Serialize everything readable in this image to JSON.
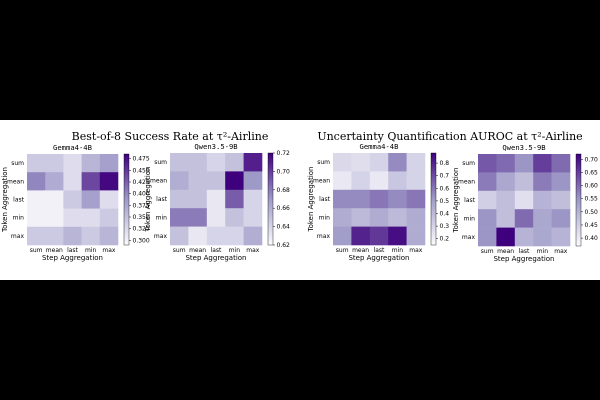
{
  "figure": {
    "left_title": "Best-of-8 Success Rate at τ²-Airline",
    "right_title": "Uncertainty Quantification AUROC at τ²-Airline"
  },
  "colors": {
    "cmap_low": "#fcfbfd",
    "cmap_mid": "#9e9ac8",
    "cmap_high": "#3f007d",
    "background": "#000000",
    "panel": "#ffffff"
  },
  "chart_data": [
    {
      "type": "heatmap",
      "group": "Best-of-8 Success Rate at τ²-Airline",
      "title": "Gemma4-4B",
      "xlabel": "Step Aggregation",
      "ylabel": "Token Aggregation",
      "x": [
        "sum",
        "mean",
        "last",
        "min",
        "max"
      ],
      "y": [
        "sum",
        "mean",
        "last",
        "min",
        "max"
      ],
      "values": [
        [
          0.34,
          0.34,
          0.32,
          0.36,
          0.38
        ],
        [
          0.4,
          0.37,
          0.32,
          0.44,
          0.48
        ],
        [
          0.3,
          0.3,
          0.34,
          0.38,
          0.32
        ],
        [
          0.3,
          0.3,
          0.32,
          0.32,
          0.34
        ],
        [
          0.34,
          0.34,
          0.36,
          0.34,
          0.36
        ]
      ],
      "colorbar": {
        "ticks": [
          0.3,
          0.325,
          0.35,
          0.375,
          0.4,
          0.425,
          0.45,
          0.475
        ],
        "tick_labels": [
          "0.300",
          "0.325",
          "0.350",
          "0.375",
          "0.400",
          "0.425",
          "0.450",
          "0.475"
        ],
        "range": [
          0.29,
          0.485
        ]
      }
    },
    {
      "type": "heatmap",
      "group": "Best-of-8 Success Rate at τ²-Airline",
      "title": "Qwen3.5-9B",
      "xlabel": "Step Aggregation",
      "ylabel": "Token Aggregation",
      "x": [
        "sum",
        "mean",
        "last",
        "min",
        "max"
      ],
      "y": [
        "sum",
        "mean",
        "last",
        "min",
        "max"
      ],
      "values": [
        [
          0.65,
          0.65,
          0.64,
          0.65,
          0.71
        ],
        [
          0.66,
          0.65,
          0.65,
          0.72,
          0.67
        ],
        [
          0.65,
          0.65,
          0.63,
          0.69,
          0.64
        ],
        [
          0.68,
          0.68,
          0.63,
          0.65,
          0.64
        ],
        [
          0.65,
          0.63,
          0.64,
          0.64,
          0.66
        ]
      ],
      "colorbar": {
        "ticks": [
          0.62,
          0.64,
          0.66,
          0.68,
          0.7,
          0.72
        ],
        "tick_labels": [
          "0.62",
          "0.64",
          "0.66",
          "0.68",
          "0.70",
          "0.72"
        ],
        "range": [
          0.62,
          0.72
        ]
      }
    },
    {
      "type": "heatmap",
      "group": "Uncertainty Quantification AUROC at τ²-Airline",
      "title": "Gemma4-4B",
      "xlabel": "Step Aggregation",
      "ylabel": "Token Aggregation",
      "x": [
        "sum",
        "mean",
        "last",
        "min",
        "max"
      ],
      "y": [
        "sum",
        "mean",
        "last",
        "min",
        "max"
      ],
      "values": [
        [
          0.28,
          0.26,
          0.3,
          0.55,
          0.3
        ],
        [
          0.22,
          0.3,
          0.22,
          0.35,
          0.3
        ],
        [
          0.55,
          0.55,
          0.6,
          0.55,
          0.6
        ],
        [
          0.45,
          0.4,
          0.45,
          0.4,
          0.45
        ],
        [
          0.5,
          0.8,
          0.75,
          0.85,
          0.45
        ]
      ],
      "colorbar": {
        "ticks": [
          0.2,
          0.3,
          0.4,
          0.5,
          0.6,
          0.7,
          0.8
        ],
        "tick_labels": [
          "0.2",
          "0.3",
          "0.4",
          "0.5",
          "0.6",
          "0.7",
          "0.8"
        ],
        "range": [
          0.15,
          0.88
        ]
      }
    },
    {
      "type": "heatmap",
      "group": "Uncertainty Quantification AUROC at τ²-Airline",
      "title": "Qwen3.5-9B",
      "xlabel": "Step Aggregation",
      "ylabel": "Token Aggregation",
      "x": [
        "sum",
        "mean",
        "last",
        "min",
        "max"
      ],
      "y": [
        "sum",
        "mean",
        "last",
        "min",
        "max"
      ],
      "values": [
        [
          0.62,
          0.6,
          0.55,
          0.65,
          0.6
        ],
        [
          0.58,
          0.52,
          0.48,
          0.58,
          0.55
        ],
        [
          0.45,
          0.48,
          0.42,
          0.5,
          0.48
        ],
        [
          0.55,
          0.48,
          0.6,
          0.52,
          0.55
        ],
        [
          0.55,
          0.72,
          0.5,
          0.52,
          0.5
        ]
      ],
      "colorbar": {
        "ticks": [
          0.4,
          0.45,
          0.5,
          0.55,
          0.6,
          0.65,
          0.7
        ],
        "tick_labels": [
          "0.40",
          "0.45",
          "0.50",
          "0.55",
          "0.60",
          "0.65",
          "0.70"
        ],
        "range": [
          0.37,
          0.72
        ]
      }
    }
  ]
}
